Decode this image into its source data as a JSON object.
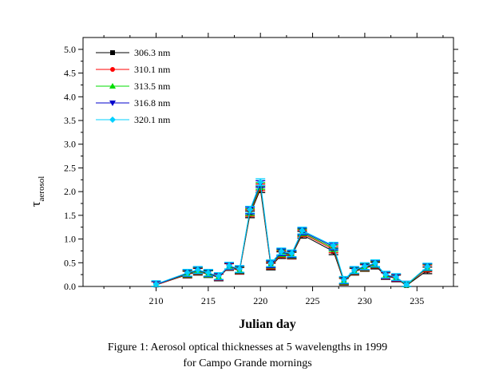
{
  "chart_data": {
    "type": "line",
    "xlabel": "Julian day",
    "ylabel_main": "τ",
    "ylabel_sub": "aerosol",
    "xlim": [
      203,
      238.5
    ],
    "ylim": [
      0.0,
      5.25
    ],
    "x_ticks": [
      210,
      215,
      220,
      225,
      230,
      235
    ],
    "y_ticks": [
      0.0,
      0.5,
      1.0,
      1.5,
      2.0,
      2.5,
      3.0,
      3.5,
      4.0,
      4.5,
      5.0
    ],
    "y_tick_labels": [
      "0.0",
      "0.5",
      "1.0",
      "1.5",
      "2.0",
      "2.5",
      "3.0",
      "3.5",
      "4.0",
      "4.5",
      "5.0"
    ],
    "grid": false,
    "legend_position": "top-left",
    "x": [
      210,
      213,
      214,
      215,
      216,
      217,
      218,
      219,
      220,
      221,
      222,
      223,
      224,
      227,
      228,
      229,
      230,
      231,
      232,
      233,
      234,
      236
    ],
    "series": [
      {
        "name": "306.3 nm",
        "color": "#000000",
        "marker": "square",
        "values": [
          0.03,
          0.25,
          0.31,
          0.26,
          0.19,
          0.41,
          0.33,
          1.52,
          2.05,
          0.42,
          0.66,
          0.65,
          1.09,
          0.74,
          0.1,
          0.31,
          0.39,
          0.44,
          0.22,
          0.17,
          0.02,
          0.34
        ]
      },
      {
        "name": "310.1 nm",
        "color": "#ff0000",
        "marker": "circle",
        "values": [
          0.03,
          0.26,
          0.32,
          0.27,
          0.2,
          0.42,
          0.34,
          1.55,
          2.09,
          0.44,
          0.68,
          0.66,
          1.12,
          0.78,
          0.11,
          0.32,
          0.4,
          0.46,
          0.23,
          0.18,
          0.03,
          0.38
        ]
      },
      {
        "name": "313.5 nm",
        "color": "#00dd00",
        "marker": "triangle-up",
        "values": [
          0.04,
          0.27,
          0.33,
          0.27,
          0.21,
          0.43,
          0.35,
          1.57,
          2.12,
          0.46,
          0.7,
          0.67,
          1.14,
          0.81,
          0.12,
          0.33,
          0.41,
          0.47,
          0.24,
          0.19,
          0.03,
          0.4
        ]
      },
      {
        "name": "316.8 nm",
        "color": "#0000cc",
        "marker": "triangle-down",
        "values": [
          0.04,
          0.28,
          0.34,
          0.28,
          0.21,
          0.43,
          0.36,
          1.6,
          2.16,
          0.47,
          0.72,
          0.68,
          1.16,
          0.84,
          0.13,
          0.34,
          0.42,
          0.48,
          0.24,
          0.19,
          0.04,
          0.41
        ]
      },
      {
        "name": "320.1 nm",
        "color": "#00d0ff",
        "marker": "diamond",
        "values": [
          0.05,
          0.29,
          0.35,
          0.29,
          0.22,
          0.44,
          0.37,
          1.62,
          2.2,
          0.49,
          0.74,
          0.7,
          1.18,
          0.86,
          0.14,
          0.35,
          0.43,
          0.49,
          0.25,
          0.2,
          0.04,
          0.42
        ]
      }
    ],
    "error_bar": 0.07
  },
  "caption": {
    "line1": "Figure 1: Aerosol optical thicknesses at 5 wavelengths in 1999",
    "line2": "for Campo Grande mornings"
  }
}
